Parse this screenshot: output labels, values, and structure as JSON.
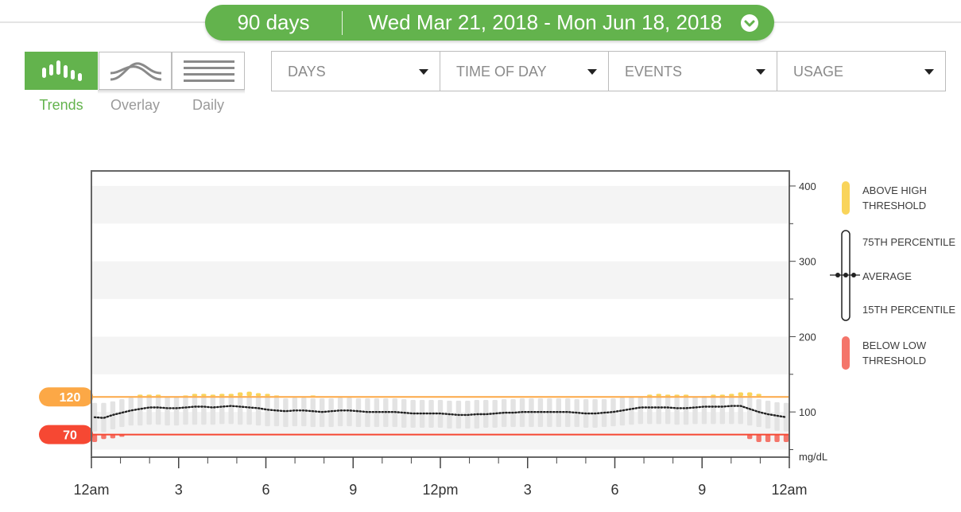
{
  "header": {
    "days_label": "90 days",
    "date_range": "Wed Mar 21, 2018 - Mon Jun 18, 2018",
    "accent_color": "#63b34d"
  },
  "views": [
    {
      "label": "Trends",
      "icon": "trends-icon",
      "active": true
    },
    {
      "label": "Overlay",
      "icon": "overlay-icon",
      "active": false
    },
    {
      "label": "Daily",
      "icon": "daily-icon",
      "active": false
    }
  ],
  "filters": [
    {
      "label": "DAYS"
    },
    {
      "label": "TIME OF DAY"
    },
    {
      "label": "EVENTS"
    },
    {
      "label": "USAGE"
    }
  ],
  "legend": {
    "above_high": "ABOVE HIGH THRESHOLD",
    "p75": "75TH PERCENTILE",
    "average": "AVERAGE",
    "p15": "15TH PERCENTILE",
    "below_low": "BELOW LOW THRESHOLD",
    "above_color": "#f9d45a",
    "below_color": "#f4756a"
  },
  "chart_data": {
    "type": "bar",
    "title": "",
    "xlabel": "",
    "ylabel": "mg/dL",
    "ylim": [
      40,
      420
    ],
    "y_ticks": [
      100,
      200,
      300,
      400
    ],
    "x_tick_labels": [
      "12am",
      "3",
      "6",
      "9",
      "12pm",
      "3",
      "6",
      "9",
      "12am"
    ],
    "x_range_hours": [
      0,
      24
    ],
    "thresholds": {
      "high": 120,
      "low": 70,
      "high_color": "#fca846",
      "low_color": "#f64833"
    },
    "average": [
      93,
      92,
      96,
      99,
      102,
      104,
      106,
      106,
      105,
      105,
      106,
      107,
      107,
      106,
      107,
      108,
      107,
      106,
      105,
      103,
      102,
      101,
      102,
      102,
      101,
      100,
      101,
      102,
      102,
      101,
      100,
      100,
      100,
      100,
      99,
      98,
      98,
      98,
      98,
      97,
      96,
      96,
      97,
      97,
      98,
      99,
      99,
      100,
      100,
      100,
      100,
      100,
      100,
      99,
      98,
      98,
      99,
      100,
      102,
      104,
      106,
      106,
      106,
      106,
      105,
      105,
      106,
      107,
      107,
      107,
      108,
      108,
      104,
      100,
      97,
      95,
      93
    ],
    "p75": [
      112,
      112,
      114,
      117,
      119,
      120,
      120,
      120,
      120,
      120,
      120,
      121,
      121,
      120,
      121,
      121,
      121,
      120,
      120,
      120,
      119,
      118,
      119,
      119,
      118,
      118,
      118,
      119,
      119,
      118,
      118,
      118,
      118,
      118,
      117,
      116,
      116,
      116,
      116,
      115,
      115,
      115,
      116,
      116,
      116,
      117,
      117,
      118,
      118,
      118,
      118,
      118,
      118,
      117,
      117,
      117,
      117,
      118,
      119,
      120,
      120,
      120,
      120,
      120,
      119,
      119,
      120,
      121,
      121,
      121,
      121,
      121,
      119,
      117,
      115,
      113,
      112
    ],
    "p15": [
      74,
      73,
      77,
      80,
      82,
      82,
      83,
      83,
      82,
      82,
      83,
      83,
      83,
      83,
      84,
      84,
      83,
      83,
      82,
      81,
      81,
      80,
      81,
      81,
      80,
      80,
      80,
      81,
      81,
      80,
      80,
      80,
      80,
      80,
      79,
      79,
      79,
      79,
      79,
      78,
      78,
      78,
      78,
      79,
      79,
      80,
      80,
      80,
      80,
      80,
      80,
      80,
      80,
      80,
      79,
      79,
      80,
      81,
      82,
      83,
      84,
      84,
      84,
      84,
      83,
      83,
      84,
      84,
      84,
      84,
      84,
      84,
      82,
      80,
      78,
      75,
      74
    ],
    "above_high": [
      0,
      0,
      0,
      0,
      0,
      2,
      2,
      2,
      0,
      0,
      1,
      3,
      3,
      2,
      3,
      3,
      5,
      6,
      4,
      3,
      1,
      0,
      0,
      0,
      1,
      0,
      0,
      0,
      0,
      0,
      0,
      0,
      0,
      0,
      0,
      0,
      0,
      0,
      0,
      0,
      0,
      0,
      0,
      0,
      0,
      0,
      0,
      0,
      0,
      0,
      0,
      0,
      0,
      0,
      0,
      0,
      0,
      0,
      0,
      0,
      0,
      2,
      3,
      2,
      2,
      2,
      0,
      0,
      2,
      2,
      3,
      5,
      5,
      3,
      0,
      0,
      0
    ],
    "below_low": [
      10,
      6,
      5,
      3,
      0,
      0,
      0,
      0,
      0,
      0,
      0,
      0,
      0,
      0,
      0,
      0,
      0,
      0,
      0,
      0,
      0,
      0,
      0,
      0,
      0,
      0,
      0,
      0,
      0,
      0,
      0,
      0,
      0,
      0,
      0,
      0,
      0,
      0,
      0,
      0,
      0,
      0,
      0,
      0,
      0,
      0,
      0,
      0,
      0,
      0,
      0,
      0,
      0,
      0,
      0,
      0,
      0,
      0,
      0,
      0,
      0,
      0,
      0,
      0,
      0,
      0,
      0,
      0,
      0,
      0,
      0,
      0,
      6,
      10,
      10,
      10,
      10
    ]
  }
}
